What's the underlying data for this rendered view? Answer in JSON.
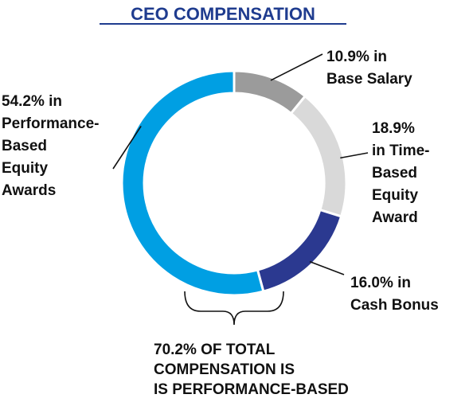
{
  "chart_data": {
    "type": "pie",
    "donut": true,
    "title": "CEO COMPENSATION",
    "slices": [
      {
        "value": 10.9,
        "color": "#9b9b9b",
        "label_lines": [
          "10.9% in",
          "Base Salary"
        ]
      },
      {
        "value": 18.9,
        "color": "#d9d9d9",
        "label_lines": [
          "18.9%",
          "in Time-",
          "Based",
          "Equity",
          "Award"
        ]
      },
      {
        "value": 16.0,
        "color": "#2b3990",
        "label_lines": [
          "16.0% in",
          "Cash Bonus"
        ]
      },
      {
        "value": 54.2,
        "color": "#009fe3",
        "label_lines": [
          "54.2% in",
          "Performance-",
          "Based",
          "Equity",
          "Awards"
        ]
      }
    ],
    "annotation_lines": [
      "70.2% OF TOTAL",
      "COMPENSATION IS",
      "IS PERFORMANCE-BASED"
    ]
  }
}
